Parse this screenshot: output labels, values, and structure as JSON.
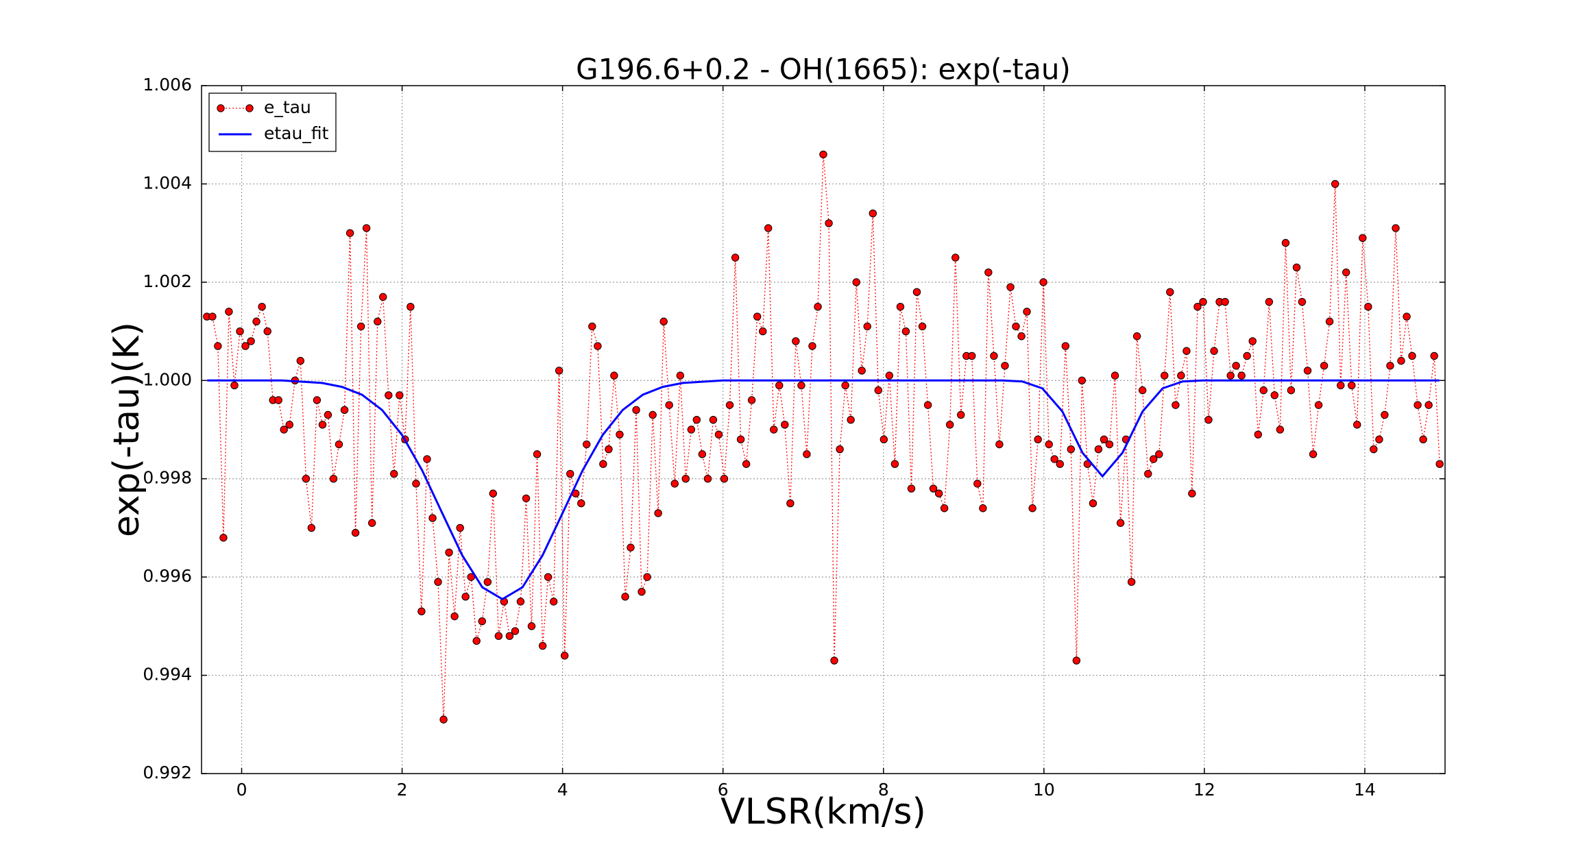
{
  "chart_data": {
    "type": "line",
    "title": "G196.6+0.2 - OH(1665): exp(-tau)",
    "xlabel": "VLSR(km/s)",
    "ylabel": "exp(-tau)(K)",
    "xlim": [
      -0.5,
      15
    ],
    "ylim": [
      0.992,
      1.006
    ],
    "xticks": [
      0,
      2,
      4,
      6,
      8,
      10,
      12,
      14
    ],
    "yticks": [
      0.992,
      0.994,
      0.996,
      0.998,
      {
        "value": 1,
        "label": "1.000"
      },
      1.002,
      1.004,
      1.006
    ],
    "grid": true,
    "legend": "upper left",
    "series": [
      {
        "name": "e_tau",
        "color": "#ff0000",
        "marker": true,
        "linestyle": "dotted",
        "x": [
          -0.433,
          -0.364,
          -0.296,
          -0.227,
          -0.159,
          -0.09,
          -0.021,
          0.047,
          0.116,
          0.184,
          0.253,
          0.322,
          0.39,
          0.459,
          0.527,
          0.596,
          0.665,
          0.733,
          0.802,
          0.87,
          0.939,
          1.008,
          1.076,
          1.145,
          1.213,
          1.282,
          1.351,
          1.419,
          1.488,
          1.556,
          1.625,
          1.694,
          1.762,
          1.831,
          1.899,
          1.968,
          2.037,
          2.105,
          2.174,
          2.242,
          2.311,
          2.38,
          2.448,
          2.517,
          2.585,
          2.654,
          2.723,
          2.791,
          2.86,
          2.928,
          2.997,
          3.066,
          3.134,
          3.203,
          3.271,
          3.34,
          3.409,
          3.477,
          3.546,
          3.614,
          3.683,
          3.752,
          3.82,
          3.889,
          3.957,
          4.026,
          4.095,
          4.163,
          4.232,
          4.3,
          4.369,
          4.438,
          4.506,
          4.575,
          4.643,
          4.712,
          4.781,
          4.849,
          4.918,
          4.986,
          5.055,
          5.124,
          5.192,
          5.261,
          5.329,
          5.398,
          5.467,
          5.535,
          5.604,
          5.672,
          5.741,
          5.81,
          5.878,
          5.947,
          6.015,
          6.084,
          6.153,
          6.221,
          6.29,
          6.358,
          6.427,
          6.496,
          6.564,
          6.633,
          6.701,
          6.77,
          6.839,
          6.907,
          6.976,
          7.044,
          7.113,
          7.182,
          7.25,
          7.319,
          7.387,
          7.456,
          7.525,
          7.593,
          7.662,
          7.73,
          7.799,
          7.868,
          7.936,
          8.005,
          8.073,
          8.142,
          8.211,
          8.279,
          8.348,
          8.416,
          8.485,
          8.554,
          8.622,
          8.691,
          8.759,
          8.828,
          8.897,
          8.965,
          9.034,
          9.102,
          9.171,
          9.24,
          9.308,
          9.377,
          9.445,
          9.514,
          9.583,
          9.651,
          9.72,
          9.788,
          9.857,
          9.926,
          9.994,
          10.063,
          10.131,
          10.2,
          10.269,
          10.337,
          10.406,
          10.474,
          10.543,
          10.612,
          10.68,
          10.749,
          10.817,
          10.886,
          10.955,
          11.023,
          11.092,
          11.16,
          11.229,
          11.298,
          11.366,
          11.435,
          11.503,
          11.572,
          11.641,
          11.709,
          11.778,
          11.846,
          11.915,
          11.984,
          12.052,
          12.121,
          12.189,
          12.258,
          12.327,
          12.395,
          12.464,
          12.532,
          12.601,
          12.67,
          12.738,
          12.807,
          12.875,
          12.944,
          13.013,
          13.081,
          13.15,
          13.218,
          13.287,
          13.356,
          13.424,
          13.493,
          13.561,
          13.63,
          13.699,
          13.767,
          13.836,
          13.904,
          13.973,
          14.042,
          14.11,
          14.179,
          14.247,
          14.316,
          14.385,
          14.453,
          14.522,
          14.59,
          14.659,
          14.728,
          14.796,
          14.865,
          14.933
        ],
        "values": [
          1.0013,
          1.0013,
          1.0007,
          0.9968,
          1.0014,
          0.9999,
          1.001,
          1.0007,
          1.0008,
          1.0012,
          1.0015,
          1.001,
          0.9996,
          0.9996,
          0.999,
          0.9991,
          1.0,
          1.0004,
          0.998,
          0.997,
          0.9996,
          0.9991,
          0.9993,
          0.998,
          0.9987,
          0.9994,
          1.003,
          0.9969,
          1.0011,
          1.0031,
          0.9971,
          1.0012,
          1.0017,
          0.9997,
          0.9981,
          0.9997,
          0.9988,
          1.0015,
          0.9979,
          0.9953,
          0.9984,
          0.9972,
          0.9959,
          0.9931,
          0.9965,
          0.9952,
          0.997,
          0.9956,
          0.996,
          0.9947,
          0.9951,
          0.9959,
          0.9977,
          0.9948,
          0.9955,
          0.9948,
          0.9949,
          0.9955,
          0.9976,
          0.995,
          0.9985,
          0.9946,
          0.996,
          0.9955,
          1.0002,
          0.9944,
          0.9981,
          0.9977,
          0.9975,
          0.9987,
          1.0011,
          1.0007,
          0.9983,
          0.9986,
          1.0001,
          0.9989,
          0.9956,
          0.9966,
          0.9994,
          0.9957,
          0.996,
          0.9993,
          0.9973,
          1.0012,
          0.9995,
          0.9979,
          1.0001,
          0.998,
          0.999,
          0.9992,
          0.9985,
          0.998,
          0.9992,
          0.9989,
          0.998,
          0.9995,
          1.0025,
          0.9988,
          0.9983,
          0.9996,
          1.0013,
          1.001,
          1.0031,
          0.999,
          0.9999,
          0.9991,
          0.9975,
          1.0008,
          0.9999,
          0.9985,
          1.0007,
          1.0015,
          1.0046,
          1.0032,
          0.9943,
          0.9986,
          0.9999,
          0.9992,
          1.002,
          1.0002,
          1.0011,
          1.0034,
          0.9998,
          0.9988,
          1.0001,
          0.9983,
          1.0015,
          1.001,
          0.9978,
          1.0018,
          1.0011,
          0.9995,
          0.9978,
          0.9977,
          0.9974,
          0.9991,
          1.0025,
          0.9993,
          1.0005,
          1.0005,
          0.9979,
          0.9974,
          1.0022,
          1.0005,
          0.9987,
          1.0003,
          1.0019,
          1.0011,
          1.0009,
          1.0014,
          0.9974,
          0.9988,
          1.002,
          0.9987,
          0.9984,
          0.9983,
          1.0007,
          0.9986,
          0.9943,
          1.0,
          0.9983,
          0.9975,
          0.9986,
          0.9988,
          0.9987,
          1.0001,
          0.9971,
          0.9988,
          0.9959,
          1.0009,
          0.9998,
          0.9981,
          0.9984,
          0.9985,
          1.0001,
          1.0018,
          0.9995,
          1.0001,
          1.0006,
          0.9977,
          1.0015,
          1.0016,
          0.9992,
          1.0006,
          1.0016,
          1.0016,
          1.0001,
          1.0003,
          1.0001,
          1.0005,
          1.0008,
          0.9989,
          0.9998,
          1.0016,
          0.9997,
          0.999,
          1.0028,
          0.9998,
          1.0023,
          1.0016,
          1.0002,
          0.9985,
          0.9995,
          1.0003,
          1.0012,
          1.004,
          0.9999,
          1.0022,
          0.9999,
          0.9991,
          1.0029,
          1.0015,
          0.9986,
          0.9988,
          0.9993,
          1.0003,
          1.0031,
          1.0004,
          1.0013,
          1.0005,
          0.9995,
          0.9988,
          0.9995,
          1.0005,
          0.9983
        ]
      },
      {
        "name": "etau_fit",
        "color": "#0000ff",
        "marker": false,
        "linestyle": "solid",
        "x": [
          -0.43,
          0.5,
          1.0,
          1.25,
          1.5,
          1.75,
          2.0,
          2.25,
          2.5,
          2.75,
          3.0,
          3.25,
          3.5,
          3.75,
          4.0,
          4.25,
          4.5,
          4.75,
          5.0,
          5.25,
          5.5,
          6.0,
          9.48,
          9.73,
          9.98,
          10.23,
          10.48,
          10.73,
          10.98,
          11.23,
          11.48,
          11.73,
          11.98,
          14.93
        ],
        "values": [
          1.0,
          1.0,
          0.99995,
          0.99987,
          0.99971,
          0.9994,
          0.99889,
          0.99817,
          0.9973,
          0.99644,
          0.99579,
          0.99555,
          0.99579,
          0.99644,
          0.9973,
          0.99817,
          0.99889,
          0.9994,
          0.99971,
          0.99987,
          0.99995,
          1.0,
          1.0,
          0.99998,
          0.99984,
          0.99937,
          0.99853,
          0.99805,
          0.99853,
          0.99937,
          0.99984,
          0.99998,
          1.0,
          1.0
        ]
      }
    ]
  }
}
